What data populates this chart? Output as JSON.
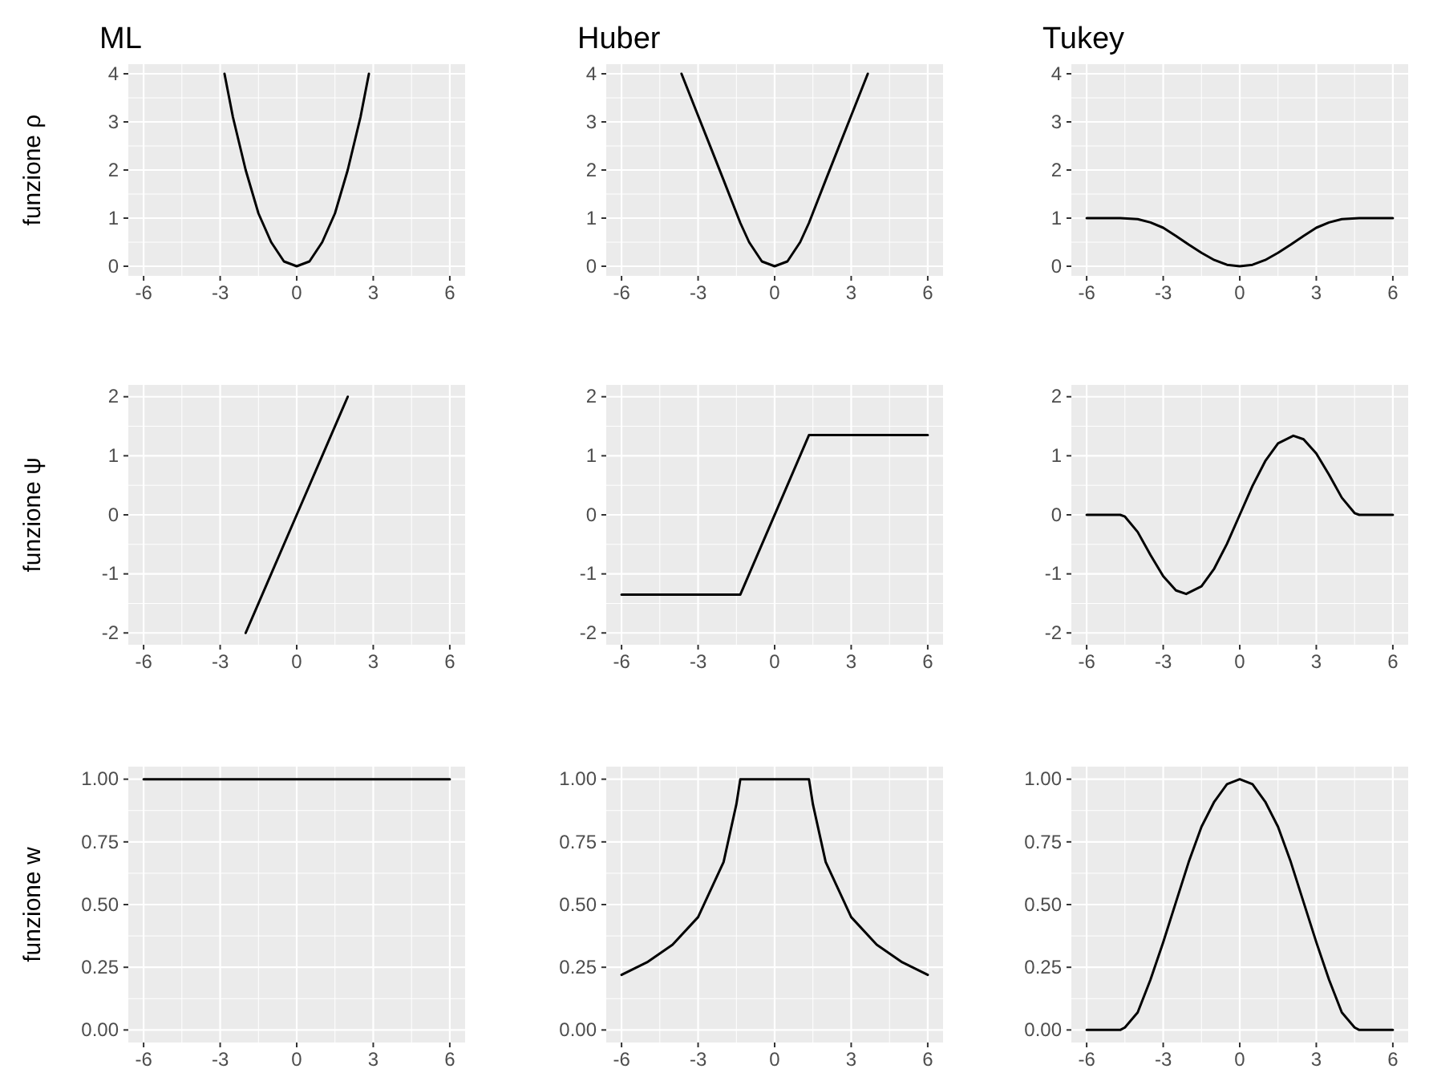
{
  "chart_data": [
    {
      "type": "line",
      "title": "ML",
      "ylabel": "funzione ρ",
      "x": [
        -2.83,
        -2.5,
        -2,
        -1.5,
        -1,
        -0.5,
        0,
        0.5,
        1,
        1.5,
        2,
        2.5,
        2.83
      ],
      "values": [
        4,
        3.1,
        2,
        1.1,
        0.5,
        0.1,
        0,
        0.1,
        0.5,
        1.1,
        2,
        3.1,
        4
      ],
      "color": "#000000",
      "xlim": [
        -6.6,
        6.6
      ],
      "xticks": [
        -6,
        -3,
        0,
        3,
        6
      ],
      "ylim": [
        -0.2,
        4.2
      ],
      "yticks": [
        0,
        1,
        2,
        3,
        4
      ],
      "grid": true
    },
    {
      "type": "line",
      "title": "Huber",
      "x": [
        -3.65,
        -3,
        -2.5,
        -2,
        -1.345,
        -1,
        -0.5,
        0,
        0.5,
        1,
        1.345,
        2,
        2.5,
        3,
        3.65
      ],
      "values": [
        4,
        3.13,
        2.46,
        1.79,
        0.9,
        0.5,
        0.1,
        0,
        0.1,
        0.5,
        0.9,
        1.79,
        2.46,
        3.13,
        4
      ],
      "color": "#000000",
      "xlim": [
        -6.6,
        6.6
      ],
      "xticks": [
        -6,
        -3,
        0,
        3,
        6
      ],
      "ylim": [
        -0.2,
        4.2
      ],
      "yticks": [
        0,
        1,
        2,
        3,
        4
      ],
      "grid": true
    },
    {
      "type": "line",
      "title": "Tukey",
      "x": [
        -6,
        -4.685,
        -4,
        -3.5,
        -3,
        -2.5,
        -2,
        -1.5,
        -1,
        -0.5,
        0,
        0.5,
        1,
        1.5,
        2,
        2.5,
        3,
        3.5,
        4,
        4.685,
        6
      ],
      "values": [
        1,
        1,
        0.98,
        0.91,
        0.8,
        0.63,
        0.45,
        0.28,
        0.13,
        0.03,
        0,
        0.03,
        0.13,
        0.28,
        0.45,
        0.63,
        0.8,
        0.91,
        0.98,
        1,
        1
      ],
      "color": "#000000",
      "xlim": [
        -6.6,
        6.6
      ],
      "xticks": [
        -6,
        -3,
        0,
        3,
        6
      ],
      "ylim": [
        -0.2,
        4.2
      ],
      "yticks": [
        0,
        1,
        2,
        3,
        4
      ],
      "grid": true
    },
    {
      "type": "line",
      "ylabel": "funzione ψ",
      "x": [
        -2,
        -1,
        0,
        1,
        2
      ],
      "values": [
        -2,
        -1,
        0,
        1,
        2
      ],
      "color": "#000000",
      "xlim": [
        -6.6,
        6.6
      ],
      "xticks": [
        -6,
        -3,
        0,
        3,
        6
      ],
      "ylim": [
        -2.2,
        2.2
      ],
      "yticks": [
        -2,
        -1,
        0,
        1,
        2
      ],
      "grid": true
    },
    {
      "type": "line",
      "x": [
        -6,
        -1.345,
        1.345,
        6
      ],
      "values": [
        -1.35,
        -1.35,
        1.35,
        1.35
      ],
      "color": "#000000",
      "xlim": [
        -6.6,
        6.6
      ],
      "xticks": [
        -6,
        -3,
        0,
        3,
        6
      ],
      "ylim": [
        -2.2,
        2.2
      ],
      "yticks": [
        -2,
        -1,
        0,
        1,
        2
      ],
      "grid": true
    },
    {
      "type": "line",
      "x": [
        -6,
        -4.685,
        -4.5,
        -4,
        -3.5,
        -3,
        -2.5,
        -2.1,
        -1.5,
        -1,
        -0.5,
        0,
        0.5,
        1,
        1.5,
        2.1,
        2.5,
        3,
        3.5,
        4,
        4.5,
        4.685,
        6
      ],
      "values": [
        0,
        0,
        -0.03,
        -0.29,
        -0.68,
        -1.04,
        -1.28,
        -1.34,
        -1.21,
        -0.91,
        -0.49,
        0,
        0.49,
        0.91,
        1.21,
        1.34,
        1.28,
        1.04,
        0.68,
        0.29,
        0.03,
        0,
        0
      ],
      "color": "#000000",
      "xlim": [
        -6.6,
        6.6
      ],
      "xticks": [
        -6,
        -3,
        0,
        3,
        6
      ],
      "ylim": [
        -2.2,
        2.2
      ],
      "yticks": [
        -2,
        -1,
        0,
        1,
        2
      ],
      "grid": true
    },
    {
      "type": "line",
      "ylabel": "funzione w",
      "x": [
        -6,
        6
      ],
      "values": [
        1,
        1
      ],
      "color": "#000000",
      "xlim": [
        -6.6,
        6.6
      ],
      "xticks": [
        -6,
        -3,
        0,
        3,
        6
      ],
      "ylim": [
        -0.05,
        1.05
      ],
      "yticks": [
        {
          "value": 0,
          "label": "0.00"
        },
        {
          "value": 0.25,
          "label": "0.25"
        },
        {
          "value": 0.5,
          "label": "0.50"
        },
        {
          "value": 0.75,
          "label": "0.75"
        },
        {
          "value": 1,
          "label": "1.00"
        }
      ],
      "grid": true
    },
    {
      "type": "line",
      "x": [
        -6,
        -5,
        -4,
        -3,
        -2,
        -1.5,
        -1.345,
        0,
        1.345,
        1.5,
        2,
        3,
        4,
        5,
        6
      ],
      "values": [
        0.22,
        0.27,
        0.34,
        0.45,
        0.67,
        0.9,
        1,
        1,
        1,
        0.9,
        0.67,
        0.45,
        0.34,
        0.27,
        0.22
      ],
      "color": "#000000",
      "xlim": [
        -6.6,
        6.6
      ],
      "xticks": [
        -6,
        -3,
        0,
        3,
        6
      ],
      "ylim": [
        -0.05,
        1.05
      ],
      "yticks": [
        {
          "value": 0,
          "label": "0.00"
        },
        {
          "value": 0.25,
          "label": "0.25"
        },
        {
          "value": 0.5,
          "label": "0.50"
        },
        {
          "value": 0.75,
          "label": "0.75"
        },
        {
          "value": 1,
          "label": "1.00"
        }
      ],
      "grid": true
    },
    {
      "type": "line",
      "x": [
        -6,
        -4.685,
        -4.5,
        -4,
        -3.5,
        -3,
        -2.5,
        -2,
        -1.5,
        -1,
        -0.5,
        0,
        0.5,
        1,
        1.5,
        2,
        2.5,
        3,
        3.5,
        4,
        4.5,
        4.685,
        6
      ],
      "values": [
        0,
        0,
        0.01,
        0.07,
        0.2,
        0.35,
        0.51,
        0.67,
        0.81,
        0.91,
        0.98,
        1,
        0.98,
        0.91,
        0.81,
        0.67,
        0.51,
        0.35,
        0.2,
        0.07,
        0.01,
        0,
        0
      ],
      "color": "#000000",
      "xlim": [
        -6.6,
        6.6
      ],
      "xticks": [
        -6,
        -3,
        0,
        3,
        6
      ],
      "ylim": [
        -0.05,
        1.05
      ],
      "yticks": [
        {
          "value": 0,
          "label": "0.00"
        },
        {
          "value": 0.25,
          "label": "0.25"
        },
        {
          "value": 0.5,
          "label": "0.50"
        },
        {
          "value": 0.75,
          "label": "0.75"
        },
        {
          "value": 1,
          "label": "1.00"
        }
      ],
      "grid": true
    }
  ]
}
